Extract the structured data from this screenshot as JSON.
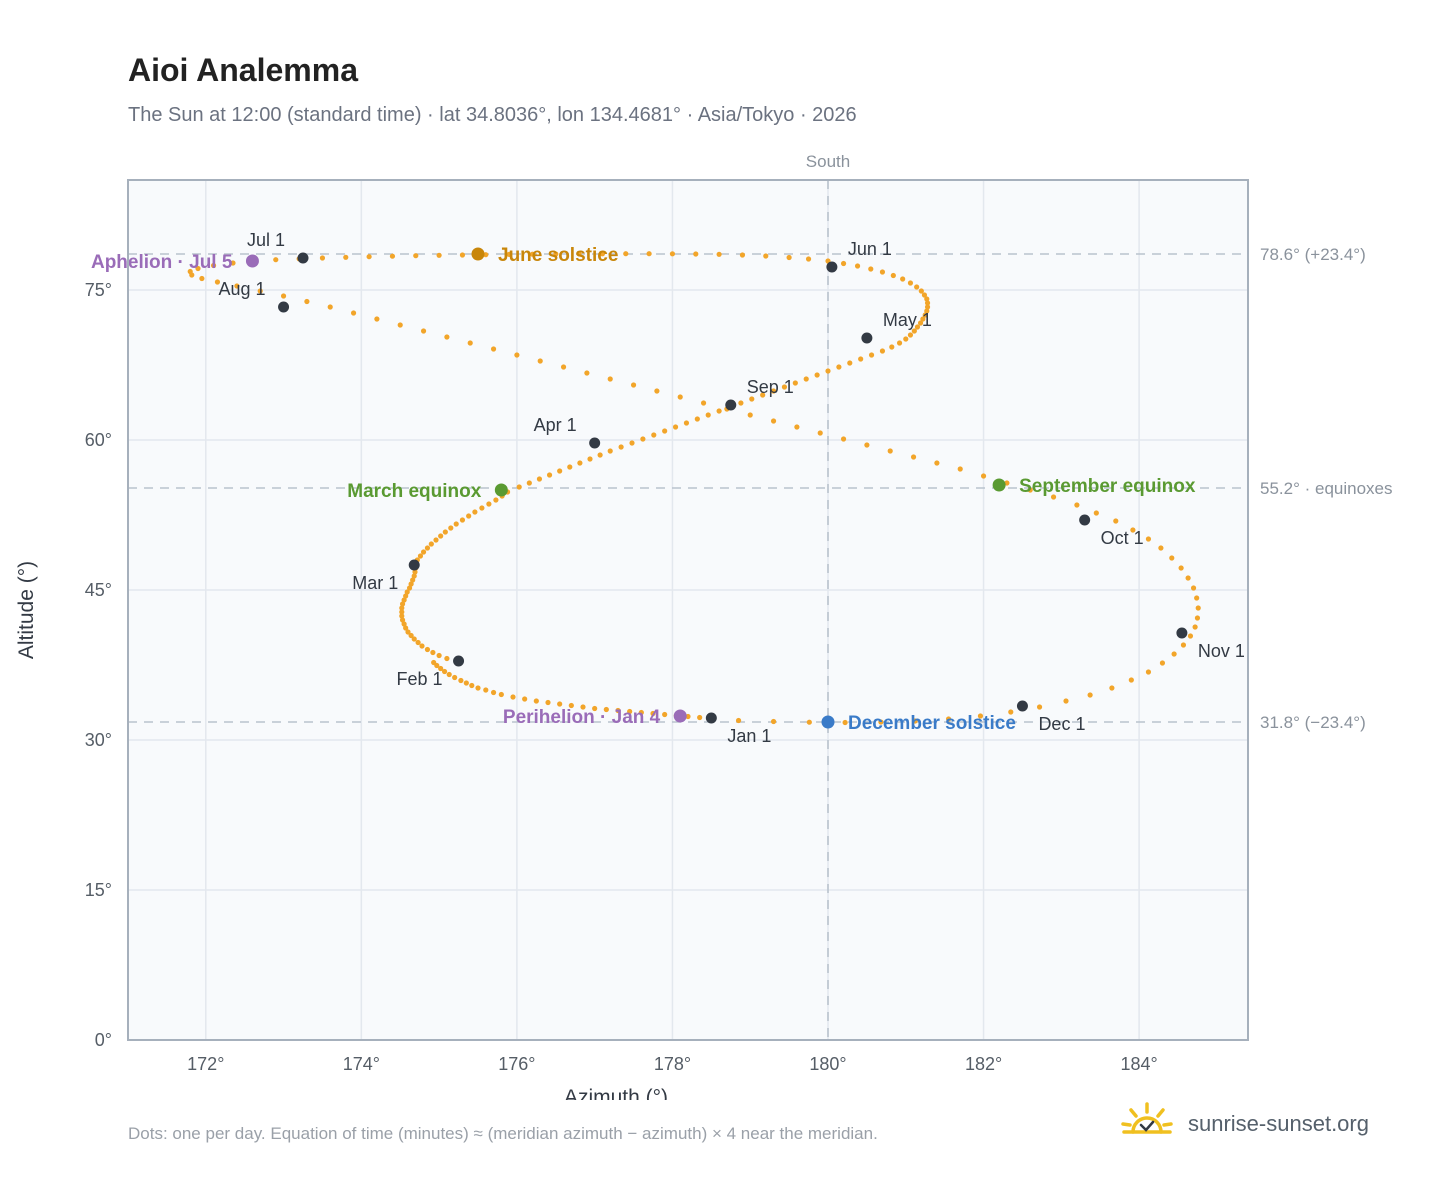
{
  "header": {
    "title": "Aioi Analemma",
    "subtitle": "The Sun at 12:00 (standard time) · lat 34.8036°, lon 134.4681° · Asia/Tokyo · 2026"
  },
  "footer": {
    "note": "Dots: one per day. Equation of time (minutes) ≈ (meridian azimuth − azimuth) × 4 near the meridian.",
    "brand": "sunrise-sunset.org"
  },
  "colors": {
    "path": "#f2a52a",
    "month_marker": "#333a44",
    "solstice_june": "#c8860a",
    "solstice_december": "#3a7bc8",
    "equinox": "#5a9a32",
    "apsis": "#9a6cb8",
    "grid": "#e3e8ee",
    "plot_bg": "#f8fafc"
  },
  "chart_data": {
    "type": "scatter",
    "xlabel": "Azimuth (°)",
    "ylabel": "Altitude (°)",
    "xlim": [
      171.0,
      185.4
    ],
    "ylim": [
      0,
      86
    ],
    "x_ticks": [
      172,
      174,
      176,
      178,
      180,
      182,
      184
    ],
    "x_tick_labels": [
      "172°",
      "174°",
      "176°",
      "178°",
      "180°",
      "182°",
      "184°"
    ],
    "y_ticks": [
      0,
      15,
      30,
      45,
      60,
      75
    ],
    "y_tick_labels": [
      "0°",
      "15°",
      "30°",
      "45°",
      "60°",
      "75°"
    ],
    "grid": true,
    "meridian": {
      "x": 180,
      "label": "South"
    },
    "reference_lines": [
      {
        "y": 78.6,
        "label": "78.6° (+23.4°)"
      },
      {
        "y": 55.2,
        "label": "55.2° · equinoxes"
      },
      {
        "y": 31.8,
        "label": "31.8° (−23.4°)"
      }
    ],
    "daily_path": [
      [
        178.5,
        32.2
      ],
      [
        178.35,
        32.25
      ],
      [
        178.2,
        32.35
      ],
      [
        178.05,
        32.45
      ],
      [
        177.9,
        32.55
      ],
      [
        177.75,
        32.65
      ],
      [
        177.6,
        32.75
      ],
      [
        177.45,
        32.85
      ],
      [
        177.3,
        32.95
      ],
      [
        177.15,
        33.05
      ],
      [
        177.0,
        33.15
      ],
      [
        176.85,
        33.3
      ],
      [
        176.7,
        33.45
      ],
      [
        176.55,
        33.6
      ],
      [
        176.4,
        33.75
      ],
      [
        176.25,
        33.9
      ],
      [
        176.1,
        34.1
      ],
      [
        175.95,
        34.3
      ],
      [
        175.8,
        34.55
      ],
      [
        175.7,
        34.75
      ],
      [
        175.6,
        35.0
      ],
      [
        175.5,
        35.2
      ],
      [
        175.42,
        35.45
      ],
      [
        175.35,
        35.7
      ],
      [
        175.28,
        35.95
      ],
      [
        175.2,
        36.25
      ],
      [
        175.13,
        36.55
      ],
      [
        175.07,
        36.85
      ],
      [
        175.02,
        37.15
      ],
      [
        174.97,
        37.45
      ],
      [
        174.93,
        37.75
      ],
      [
        175.25,
        37.9
      ],
      [
        175.1,
        38.15
      ],
      [
        175.0,
        38.45
      ],
      [
        174.92,
        38.75
      ],
      [
        174.85,
        39.05
      ],
      [
        174.78,
        39.4
      ],
      [
        174.73,
        39.75
      ],
      [
        174.68,
        40.1
      ],
      [
        174.64,
        40.45
      ],
      [
        174.6,
        40.8
      ],
      [
        174.57,
        41.2
      ],
      [
        174.55,
        41.6
      ],
      [
        174.53,
        42.0
      ],
      [
        174.52,
        42.4
      ],
      [
        174.52,
        42.8
      ],
      [
        174.52,
        43.2
      ],
      [
        174.53,
        43.6
      ],
      [
        174.55,
        44.0
      ],
      [
        174.57,
        44.4
      ],
      [
        174.59,
        44.8
      ],
      [
        174.62,
        45.2
      ],
      [
        174.64,
        45.6
      ],
      [
        174.66,
        46.0
      ],
      [
        174.68,
        46.4
      ],
      [
        174.69,
        46.8
      ],
      [
        174.7,
        47.2
      ],
      [
        174.7,
        47.5
      ],
      [
        174.69,
        47.6
      ],
      [
        174.72,
        48.0
      ],
      [
        174.76,
        48.4
      ],
      [
        174.8,
        48.8
      ],
      [
        174.85,
        49.2
      ],
      [
        174.9,
        49.6
      ],
      [
        174.96,
        50.0
      ],
      [
        175.02,
        50.4
      ],
      [
        175.08,
        50.8
      ],
      [
        175.15,
        51.2
      ],
      [
        175.22,
        51.6
      ],
      [
        175.3,
        52.0
      ],
      [
        175.38,
        52.4
      ],
      [
        175.46,
        52.8
      ],
      [
        175.55,
        53.2
      ],
      [
        175.64,
        53.6
      ],
      [
        175.73,
        54.0
      ],
      [
        175.81,
        54.4
      ],
      [
        175.88,
        54.8
      ],
      [
        175.8,
        55.0
      ],
      [
        176.03,
        55.3
      ],
      [
        176.16,
        55.7
      ],
      [
        176.29,
        56.1
      ],
      [
        176.42,
        56.5
      ],
      [
        176.55,
        56.9
      ],
      [
        176.68,
        57.3
      ],
      [
        176.81,
        57.7
      ],
      [
        176.94,
        58.1
      ],
      [
        177.07,
        58.5
      ],
      [
        177.2,
        58.9
      ],
      [
        177.34,
        59.3
      ],
      [
        177.48,
        59.7
      ],
      [
        177.62,
        60.1
      ],
      [
        177.76,
        60.5
      ],
      [
        177.9,
        60.9
      ],
      [
        178.04,
        61.3
      ],
      [
        178.18,
        61.7
      ],
      [
        178.32,
        62.1
      ],
      [
        178.46,
        62.5
      ],
      [
        178.6,
        62.9
      ],
      [
        178.74,
        63.3
      ],
      [
        178.88,
        63.7
      ],
      [
        179.02,
        64.1
      ],
      [
        179.16,
        64.5
      ],
      [
        179.3,
        64.9
      ],
      [
        179.44,
        65.3
      ],
      [
        179.58,
        65.7
      ],
      [
        179.72,
        66.1
      ],
      [
        179.86,
        66.5
      ],
      [
        180.0,
        66.9
      ],
      [
        180.14,
        67.3
      ],
      [
        180.28,
        67.7
      ],
      [
        180.42,
        68.1
      ],
      [
        180.56,
        68.5
      ],
      [
        180.7,
        68.9
      ],
      [
        180.82,
        69.3
      ],
      [
        180.92,
        69.7
      ],
      [
        181.0,
        70.1
      ],
      [
        181.06,
        70.5
      ],
      [
        181.11,
        70.9
      ],
      [
        181.15,
        71.3
      ],
      [
        181.19,
        71.7
      ],
      [
        181.22,
        72.1
      ],
      [
        181.25,
        72.5
      ],
      [
        181.27,
        72.9
      ],
      [
        181.28,
        73.3
      ],
      [
        181.28,
        73.7
      ],
      [
        181.27,
        74.1
      ],
      [
        181.24,
        74.5
      ],
      [
        181.2,
        74.9
      ],
      [
        181.14,
        75.3
      ],
      [
        181.06,
        75.7
      ],
      [
        180.96,
        76.1
      ],
      [
        180.84,
        76.45
      ],
      [
        180.7,
        76.8
      ],
      [
        180.55,
        77.1
      ],
      [
        180.38,
        77.4
      ],
      [
        180.2,
        77.65
      ],
      [
        180.0,
        77.9
      ],
      [
        179.75,
        78.1
      ],
      [
        179.5,
        78.25
      ],
      [
        179.2,
        78.4
      ],
      [
        178.9,
        78.5
      ],
      [
        178.6,
        78.57
      ],
      [
        178.3,
        78.6
      ],
      [
        178.0,
        78.62
      ],
      [
        177.7,
        78.63
      ],
      [
        177.4,
        78.63
      ],
      [
        177.1,
        78.62
      ],
      [
        176.8,
        78.61
      ],
      [
        176.5,
        78.6
      ],
      [
        176.2,
        78.58
      ],
      [
        175.9,
        78.56
      ],
      [
        175.6,
        78.53
      ],
      [
        175.3,
        78.5
      ],
      [
        175.0,
        78.47
      ],
      [
        174.7,
        78.43
      ],
      [
        174.4,
        78.38
      ],
      [
        174.1,
        78.33
      ],
      [
        173.8,
        78.27
      ],
      [
        173.5,
        78.2
      ],
      [
        173.2,
        78.12
      ],
      [
        172.9,
        78.03
      ],
      [
        172.6,
        77.9
      ],
      [
        172.35,
        77.7
      ],
      [
        172.1,
        77.45
      ],
      [
        171.9,
        77.15
      ],
      [
        171.8,
        76.85
      ],
      [
        171.82,
        76.5
      ],
      [
        171.95,
        76.15
      ],
      [
        172.15,
        75.8
      ],
      [
        172.4,
        75.4
      ],
      [
        172.7,
        74.9
      ],
      [
        173.0,
        74.4
      ],
      [
        173.3,
        73.85
      ],
      [
        173.6,
        73.3
      ],
      [
        173.9,
        72.7
      ],
      [
        174.2,
        72.1
      ],
      [
        174.5,
        71.5
      ],
      [
        174.8,
        70.9
      ],
      [
        175.1,
        70.3
      ],
      [
        175.4,
        69.7
      ],
      [
        175.7,
        69.1
      ],
      [
        176.0,
        68.5
      ],
      [
        176.3,
        67.9
      ],
      [
        176.6,
        67.3
      ],
      [
        176.9,
        66.7
      ],
      [
        177.2,
        66.1
      ],
      [
        177.5,
        65.5
      ],
      [
        177.8,
        64.9
      ],
      [
        178.1,
        64.3
      ],
      [
        178.4,
        63.7
      ],
      [
        178.7,
        63.1
      ],
      [
        179.0,
        62.5
      ],
      [
        179.3,
        61.9
      ],
      [
        179.6,
        61.3
      ],
      [
        179.9,
        60.7
      ],
      [
        180.2,
        60.1
      ],
      [
        180.5,
        59.5
      ],
      [
        180.8,
        58.9
      ],
      [
        181.1,
        58.3
      ],
      [
        181.4,
        57.7
      ],
      [
        181.7,
        57.1
      ],
      [
        182.0,
        56.4
      ],
      [
        182.3,
        55.7
      ],
      [
        182.6,
        55.0
      ],
      [
        182.9,
        54.3
      ],
      [
        183.2,
        53.5
      ],
      [
        183.45,
        52.7
      ],
      [
        183.7,
        51.9
      ],
      [
        183.92,
        51.0
      ],
      [
        184.12,
        50.1
      ],
      [
        184.28,
        49.2
      ],
      [
        184.42,
        48.2
      ],
      [
        184.54,
        47.2
      ],
      [
        184.63,
        46.2
      ],
      [
        184.7,
        45.2
      ],
      [
        184.74,
        44.2
      ],
      [
        184.76,
        43.2
      ],
      [
        184.75,
        42.2
      ],
      [
        184.72,
        41.3
      ],
      [
        184.66,
        40.4
      ],
      [
        184.57,
        39.5
      ],
      [
        184.45,
        38.6
      ],
      [
        184.3,
        37.7
      ],
      [
        184.12,
        36.8
      ],
      [
        183.9,
        36.0
      ],
      [
        183.65,
        35.2
      ],
      [
        183.37,
        34.5
      ],
      [
        183.06,
        33.9
      ],
      [
        182.72,
        33.3
      ],
      [
        182.35,
        32.8
      ],
      [
        181.96,
        32.4
      ],
      [
        181.55,
        32.1
      ],
      [
        181.12,
        31.9
      ],
      [
        180.68,
        31.8
      ],
      [
        180.22,
        31.75
      ],
      [
        179.76,
        31.78
      ],
      [
        179.3,
        31.85
      ],
      [
        178.85,
        31.95
      ]
    ],
    "month_markers": [
      {
        "label": "Jan 1",
        "x": 178.5,
        "y": 32.2,
        "anchor": "below-right"
      },
      {
        "label": "Feb 1",
        "x": 175.25,
        "y": 37.9,
        "anchor": "below-left"
      },
      {
        "label": "Mar 1",
        "x": 174.68,
        "y": 47.5,
        "anchor": "below-left"
      },
      {
        "label": "Apr 1",
        "x": 177.0,
        "y": 59.7,
        "anchor": "above-left"
      },
      {
        "label": "May 1",
        "x": 180.5,
        "y": 70.2,
        "anchor": "above-right"
      },
      {
        "label": "Jun 1",
        "x": 180.05,
        "y": 77.3,
        "anchor": "above-right"
      },
      {
        "label": "Jul 1",
        "x": 173.25,
        "y": 78.2,
        "anchor": "above-left"
      },
      {
        "label": "Aug 1",
        "x": 173.0,
        "y": 73.3,
        "anchor": "above-left"
      },
      {
        "label": "Sep 1",
        "x": 178.75,
        "y": 63.5,
        "anchor": "above-right"
      },
      {
        "label": "Oct 1",
        "x": 183.3,
        "y": 52.0,
        "anchor": "below-right"
      },
      {
        "label": "Nov 1",
        "x": 184.55,
        "y": 40.7,
        "anchor": "below-right"
      },
      {
        "label": "Dec 1",
        "x": 182.5,
        "y": 33.4,
        "anchor": "below-right"
      }
    ],
    "events": [
      {
        "label": "June solstice",
        "x": 175.5,
        "y": 78.6,
        "color": "#c8860a",
        "side": "right"
      },
      {
        "label": "December solstice",
        "x": 180.0,
        "y": 31.8,
        "color": "#3a7bc8",
        "side": "right"
      },
      {
        "label": "March equinox",
        "x": 175.8,
        "y": 55.0,
        "color": "#5a9a32",
        "side": "left"
      },
      {
        "label": "September equinox",
        "x": 182.2,
        "y": 55.5,
        "color": "#5a9a32",
        "side": "right"
      },
      {
        "label": "Aphelion · Jul 5",
        "x": 172.6,
        "y": 77.9,
        "color": "#9a6cb8",
        "side": "left"
      },
      {
        "label": "Perihelion · Jan 4",
        "x": 178.1,
        "y": 32.4,
        "color": "#9a6cb8",
        "side": "left"
      }
    ]
  }
}
